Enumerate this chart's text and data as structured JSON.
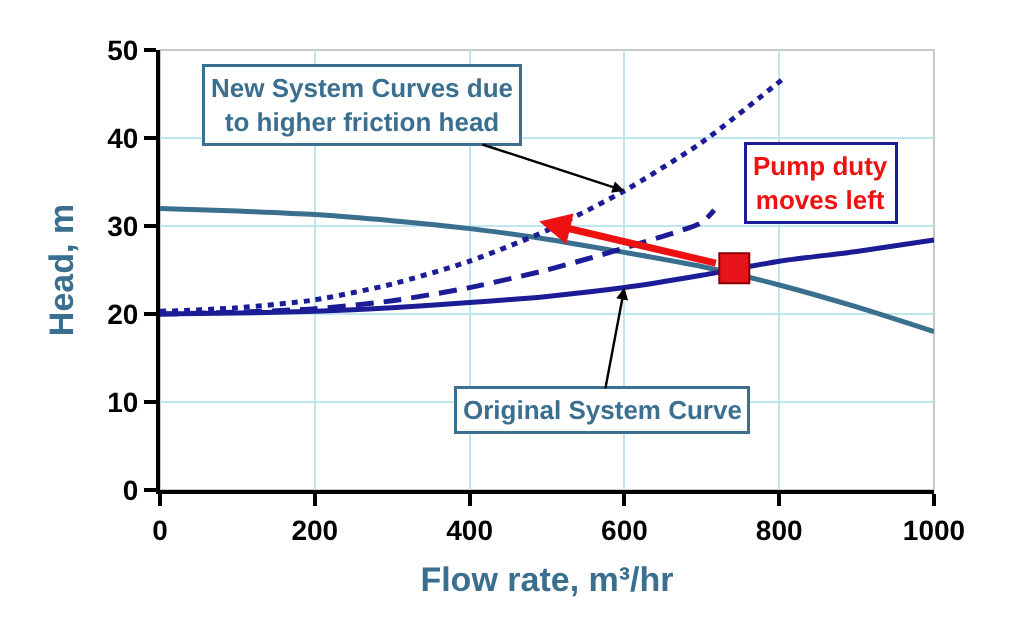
{
  "chart_data": {
    "type": "line",
    "xlabel": "Flow rate, m³/hr",
    "ylabel": "Head, m",
    "xlim": [
      0,
      1000
    ],
    "ylim": [
      0,
      50
    ],
    "xticks": [
      0,
      200,
      400,
      600,
      800,
      1000
    ],
    "yticks": [
      0,
      10,
      20,
      30,
      40,
      50
    ],
    "grid": true,
    "series": [
      {
        "color": "#3a6f8f",
        "line_style": "solid",
        "marker": "none",
        "x": [
          0,
          100,
          200,
          300,
          400,
          500,
          600,
          700,
          800,
          900,
          1000
        ],
        "values": [
          32,
          31.7,
          31.3,
          30.6,
          29.7,
          28.5,
          27,
          25.4,
          23.3,
          20.8,
          18
        ]
      },
      {
        "color": "#1c1c96",
        "line_style": "solid",
        "marker": "none",
        "x": [
          0,
          100,
          200,
          300,
          400,
          500,
          600,
          700,
          800,
          900,
          1000
        ],
        "values": [
          20,
          20.1,
          20.3,
          20.7,
          21.3,
          22,
          23,
          24.4,
          26,
          27.1,
          28.4
        ]
      },
      {
        "color": "#1c1c96",
        "line_style": "dashed",
        "marker": "none",
        "x": [
          0,
          100,
          200,
          300,
          400,
          500,
          600,
          700,
          716
        ],
        "values": [
          20,
          20.2,
          20.6,
          21.5,
          23,
          25,
          27.5,
          30.4,
          31.8
        ]
      },
      {
        "color": "#1c1c96",
        "line_style": "dotted",
        "marker": "none",
        "x": [
          0,
          100,
          200,
          300,
          400,
          500,
          600,
          700,
          809
        ],
        "values": [
          20.3,
          20.7,
          21.6,
          23.4,
          26,
          29.5,
          34,
          39.5,
          47
        ]
      },
      {
        "type": "scatter",
        "color": "#e8141c",
        "marker": "square",
        "x": [
          742
        ],
        "values": [
          25.2
        ]
      }
    ],
    "annotations": [
      {
        "text": "New System Curves due\nto higher friction head",
        "x": 600,
        "y": 34
      },
      "Pump duty\nmoves left",
      {
        "text": "Original System Curve",
        "x": 600,
        "y": 23
      }
    ]
  }
}
